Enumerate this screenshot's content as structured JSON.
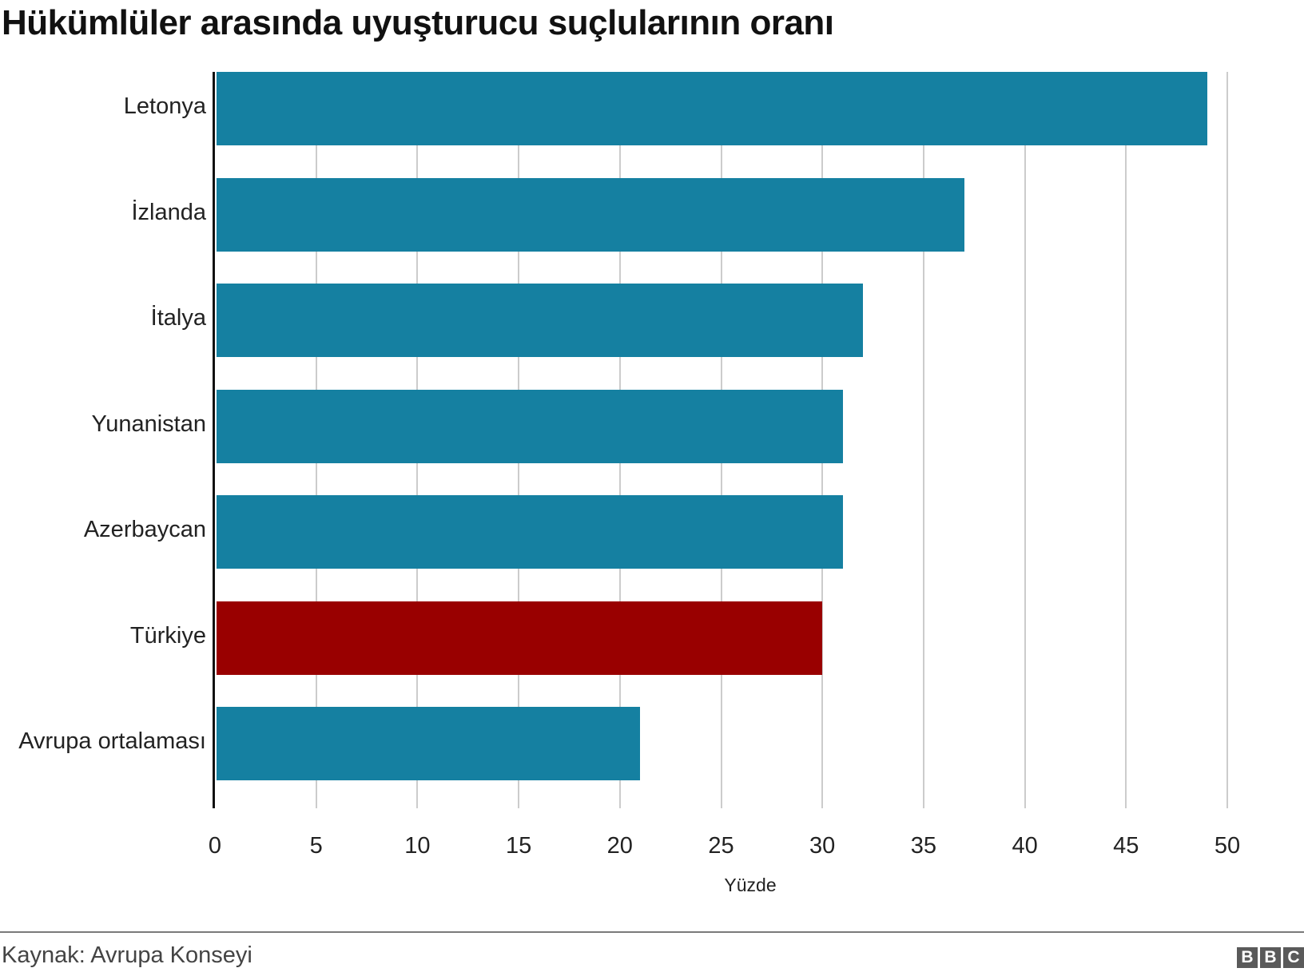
{
  "title": "Hükümlüler arasında uyuşturucu suçlularının oranı",
  "source": "Kaynak: Avrupa Konseyi",
  "logo": [
    "B",
    "B",
    "C"
  ],
  "colors": {
    "default": "#1580a1",
    "highlight": "#990000",
    "grid": "#cccccc"
  },
  "chart_data": {
    "type": "bar",
    "orientation": "horizontal",
    "title": "Hükümlüler arasında uyuşturucu suçlularının oranı",
    "xlabel": "Yüzde",
    "ylabel": "",
    "categories": [
      "Letonya",
      "İzlanda",
      "İtalya",
      "Yunanistan",
      "Azerbaycan",
      "Türkiye",
      "Avrupa ortalaması"
    ],
    "values": [
      49,
      37,
      32,
      31,
      31,
      30,
      21
    ],
    "highlight": "Türkiye",
    "xlim": [
      0,
      50
    ],
    "xticks": [
      "0",
      "5",
      "10",
      "15",
      "20",
      "25",
      "30",
      "35",
      "40",
      "45",
      "50"
    ],
    "grid": true
  }
}
